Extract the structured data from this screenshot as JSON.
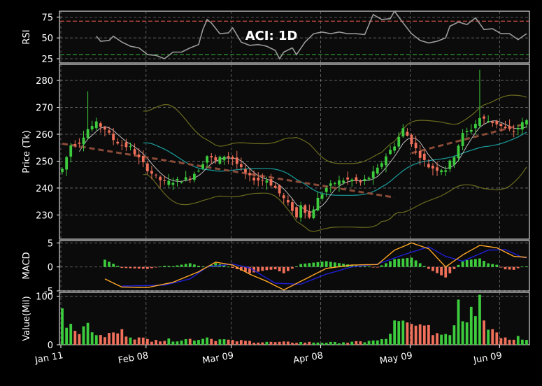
{
  "chart_data": {
    "type": "candlestick",
    "title": "ACI: 1D",
    "x_ticks": [
      "Jan 11",
      "Feb 08",
      "Mar 09",
      "Apr 08",
      "May 09",
      "Jun 09"
    ],
    "colors": {
      "up": "#3dcc3d",
      "down": "#f0705a",
      "background": "#0b0b0b",
      "grid": "#9a9a9a",
      "macd": "#ffa726",
      "signal": "#1f1fd6",
      "bollinger": "#6b6b1f",
      "sma": "#1a9e9e",
      "trend": "#8a4a38",
      "rsi": "#9a9a9a",
      "rsi_upper_line": "#b5483d",
      "rsi_lower_line": "#2e8b2e"
    },
    "panels": {
      "rsi": {
        "ylabel": "RSI",
        "yticks": [
          25,
          50,
          75
        ],
        "ylim": [
          20,
          82
        ],
        "levels": [
          70,
          30
        ]
      },
      "price": {
        "ylabel": "Price (Tk)",
        "yticks": [
          230,
          240,
          250,
          260,
          270,
          280
        ],
        "ylim": [
          221,
          286
        ]
      },
      "macd": {
        "ylabel": "MACD",
        "yticks": [
          -5,
          0,
          5
        ],
        "ylim": [
          -5,
          5.5
        ]
      },
      "value": {
        "ylabel": "Value(Mil)",
        "yticks": [
          0,
          100
        ],
        "ylim": [
          0,
          108
        ]
      }
    },
    "ohlc_anchors": [
      [
        0,
        247
      ],
      [
        2,
        256
      ],
      [
        4,
        257
      ],
      [
        6,
        262
      ],
      [
        8,
        264
      ],
      [
        10,
        262
      ],
      [
        12,
        258
      ],
      [
        14,
        256
      ],
      [
        16,
        255
      ],
      [
        18,
        251
      ],
      [
        20,
        247
      ],
      [
        22,
        244
      ],
      [
        24,
        242
      ],
      [
        26,
        242.5
      ],
      [
        28,
        243
      ],
      [
        30,
        244
      ],
      [
        32,
        247
      ],
      [
        34,
        252
      ],
      [
        36,
        250
      ],
      [
        38,
        252
      ],
      [
        40,
        251
      ],
      [
        42,
        247
      ],
      [
        44,
        244
      ],
      [
        46,
        243
      ],
      [
        48,
        243
      ],
      [
        50,
        240
      ],
      [
        52,
        236
      ],
      [
        54,
        232
      ],
      [
        55,
        229
      ],
      [
        56,
        234
      ],
      [
        58,
        229
      ],
      [
        60,
        236
      ],
      [
        62,
        240
      ],
      [
        64,
        242
      ],
      [
        66,
        243
      ],
      [
        68,
        243
      ],
      [
        70,
        242
      ],
      [
        72,
        244
      ],
      [
        74,
        247
      ],
      [
        76,
        252
      ],
      [
        78,
        256
      ],
      [
        80,
        262
      ],
      [
        82,
        257
      ],
      [
        84,
        252
      ],
      [
        86,
        248
      ],
      [
        88,
        247
      ],
      [
        90,
        247
      ],
      [
        92,
        252
      ],
      [
        94,
        260
      ],
      [
        96,
        262
      ],
      [
        98,
        266
      ],
      [
        100,
        265
      ],
      [
        102,
        264
      ],
      [
        104,
        262
      ],
      [
        106,
        261
      ],
      [
        108,
        264
      ],
      [
        109,
        265
      ]
    ],
    "volume_anchors": [
      [
        0,
        75
      ],
      [
        1,
        35
      ],
      [
        2,
        43
      ],
      [
        5,
        38
      ],
      [
        6,
        45
      ],
      [
        9,
        20
      ],
      [
        14,
        32
      ],
      [
        18,
        15
      ],
      [
        22,
        10
      ],
      [
        34,
        15
      ],
      [
        40,
        10
      ],
      [
        48,
        6
      ],
      [
        58,
        6
      ],
      [
        66,
        5
      ],
      [
        72,
        8
      ],
      [
        76,
        12
      ],
      [
        78,
        50
      ],
      [
        84,
        42
      ],
      [
        90,
        22
      ],
      [
        92,
        40
      ],
      [
        93,
        93
      ],
      [
        95,
        46
      ],
      [
        96,
        78
      ],
      [
        98,
        103
      ],
      [
        99,
        50
      ],
      [
        101,
        32
      ],
      [
        104,
        15
      ],
      [
        107,
        18
      ],
      [
        109,
        10
      ]
    ],
    "macd_anchors": [
      [
        10,
        -2.5
      ],
      [
        14,
        -4.2
      ],
      [
        20,
        -4.3
      ],
      [
        26,
        -3.2
      ],
      [
        32,
        -1.0
      ],
      [
        36,
        1.0
      ],
      [
        40,
        0.4
      ],
      [
        44,
        -1.5
      ],
      [
        48,
        -3.0
      ],
      [
        52,
        -4.8
      ],
      [
        56,
        -3.0
      ],
      [
        62,
        -0.3
      ],
      [
        68,
        0.4
      ],
      [
        74,
        0.5
      ],
      [
        78,
        3.5
      ],
      [
        82,
        5.0
      ],
      [
        86,
        3.8
      ],
      [
        90,
        0.0
      ],
      [
        94,
        2.5
      ],
      [
        98,
        4.5
      ],
      [
        102,
        4.0
      ],
      [
        106,
        2.2
      ],
      [
        109,
        2.0
      ]
    ],
    "signal_anchors": [
      [
        14,
        -4.0
      ],
      [
        24,
        -3.8
      ],
      [
        30,
        -2.5
      ],
      [
        34,
        0.0
      ],
      [
        40,
        0.6
      ],
      [
        44,
        -0.2
      ],
      [
        50,
        -3.4
      ],
      [
        56,
        -3.6
      ],
      [
        62,
        -1.5
      ],
      [
        68,
        0.0
      ],
      [
        74,
        0.6
      ],
      [
        80,
        2.5
      ],
      [
        86,
        4.2
      ],
      [
        90,
        2.2
      ],
      [
        94,
        1.2
      ],
      [
        100,
        3.5
      ],
      [
        104,
        3.6
      ],
      [
        108,
        2.0
      ],
      [
        109,
        1.9
      ]
    ],
    "rsi_anchors": [
      [
        8,
        52
      ],
      [
        9,
        46
      ],
      [
        11,
        47
      ],
      [
        12,
        52
      ],
      [
        14,
        45
      ],
      [
        16,
        40
      ],
      [
        18,
        38
      ],
      [
        20,
        30
      ],
      [
        22,
        29
      ],
      [
        24,
        25
      ],
      [
        26,
        33
      ],
      [
        28,
        33
      ],
      [
        30,
        38
      ],
      [
        32,
        42
      ],
      [
        33,
        60
      ],
      [
        34,
        72
      ],
      [
        35,
        68
      ],
      [
        37,
        55
      ],
      [
        39,
        56
      ],
      [
        40,
        62
      ],
      [
        42,
        45
      ],
      [
        44,
        41
      ],
      [
        46,
        42
      ],
      [
        48,
        40
      ],
      [
        50,
        35
      ],
      [
        51,
        25
      ],
      [
        52,
        33
      ],
      [
        54,
        38
      ],
      [
        55,
        30
      ],
      [
        57,
        45
      ],
      [
        59,
        55
      ],
      [
        61,
        57
      ],
      [
        63,
        55
      ],
      [
        65,
        57
      ],
      [
        67,
        55
      ],
      [
        69,
        55
      ],
      [
        71,
        54
      ],
      [
        73,
        78
      ],
      [
        75,
        72
      ],
      [
        77,
        73
      ],
      [
        78,
        82
      ],
      [
        80,
        68
      ],
      [
        82,
        55
      ],
      [
        84,
        47
      ],
      [
        86,
        44
      ],
      [
        88,
        46
      ],
      [
        90,
        50
      ],
      [
        91,
        64
      ],
      [
        93,
        69
      ],
      [
        95,
        66
      ],
      [
        97,
        74
      ],
      [
        99,
        60
      ],
      [
        101,
        61
      ],
      [
        103,
        55
      ],
      [
        105,
        55
      ],
      [
        107,
        48
      ],
      [
        109,
        55
      ]
    ],
    "spikes": [
      {
        "i": 98,
        "high": 284
      },
      {
        "i": 6,
        "high": 276
      }
    ],
    "trend_lines": [
      {
        "x0": 0,
        "y0": 256.5,
        "x1": 78,
        "y1": 236.5
      },
      {
        "x0": 82,
        "y0": 253,
        "x1": 109,
        "y1": 264
      }
    ],
    "annotations": {}
  }
}
